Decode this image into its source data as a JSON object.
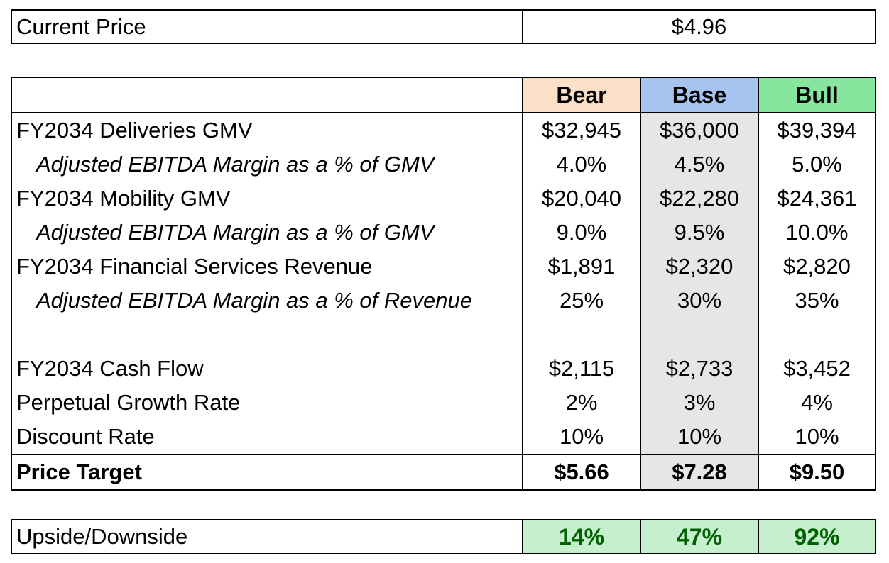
{
  "current": {
    "label": "Current Price",
    "value": "$4.96"
  },
  "scenarios": {
    "headers": [
      {
        "label": "Bear",
        "color": "#fbe0c8"
      },
      {
        "label": "Base",
        "color": "#a7c4f0"
      },
      {
        "label": "Bull",
        "color": "#86e69e"
      }
    ],
    "base_column_shade": "#e6e6e6",
    "rows": [
      {
        "label": "FY2034 Deliveries GMV",
        "style": "normal",
        "values": [
          "$32,945",
          "$36,000",
          "$39,394"
        ]
      },
      {
        "label": "Adjusted EBITDA Margin as a % of GMV",
        "style": "italic",
        "values": [
          "4.0%",
          "4.5%",
          "5.0%"
        ]
      },
      {
        "label": "FY2034 Mobility GMV",
        "style": "normal",
        "values": [
          "$20,040",
          "$22,280",
          "$24,361"
        ]
      },
      {
        "label": "Adjusted EBITDA Margin as a % of GMV",
        "style": "italic",
        "values": [
          "9.0%",
          "9.5%",
          "10.0%"
        ]
      },
      {
        "label": "FY2034 Financial Services Revenue",
        "style": "normal",
        "values": [
          "$1,891",
          "$2,320",
          "$2,820"
        ]
      },
      {
        "label": "Adjusted EBITDA Margin as a % of  Revenue",
        "style": "italic",
        "values": [
          "25%",
          "30%",
          "35%"
        ]
      },
      {
        "label": "",
        "style": "spacer",
        "values": [
          "",
          "",
          ""
        ]
      },
      {
        "label": "FY2034 Cash Flow",
        "style": "normal",
        "values": [
          "$2,115",
          "$2,733",
          "$3,452"
        ]
      },
      {
        "label": "Perpetual Growth Rate",
        "style": "normal",
        "values": [
          "2%",
          "3%",
          "4%"
        ]
      },
      {
        "label": "Discount Rate",
        "style": "normal",
        "values": [
          "10%",
          "10%",
          "10%"
        ]
      }
    ],
    "target": {
      "label": "Price Target",
      "values": [
        "$5.66",
        "$7.28",
        "$9.50"
      ]
    }
  },
  "upside": {
    "label": "Upside/Downside",
    "values": [
      "14%",
      "47%",
      "92%"
    ],
    "fill_color": "#c6efce",
    "text_color": "#006100"
  }
}
